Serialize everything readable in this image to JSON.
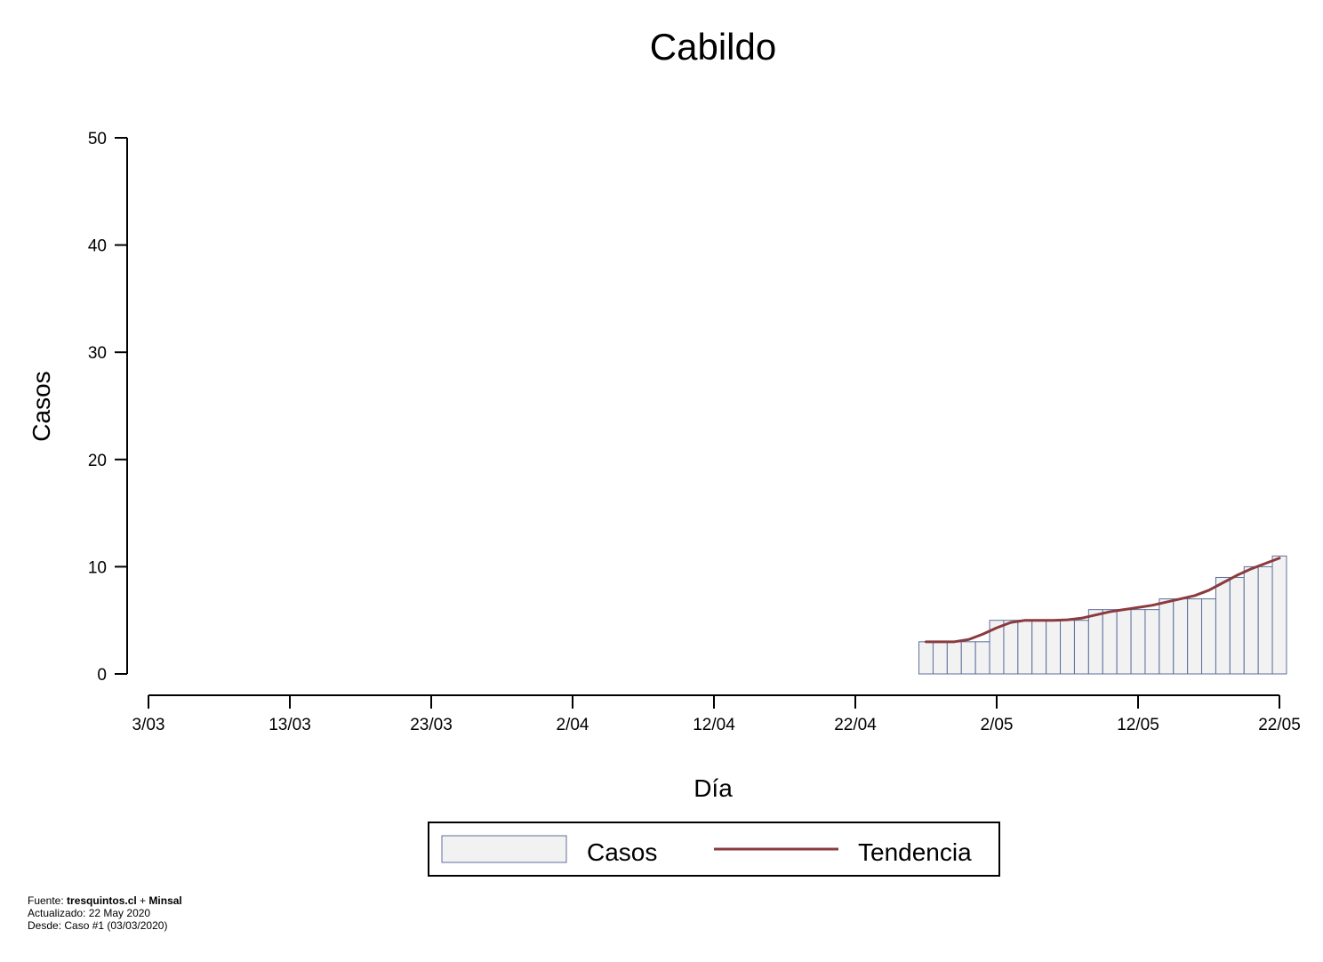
{
  "chart_data": {
    "type": "bar",
    "title": "Cabildo",
    "xlabel": "Día",
    "ylabel": "Casos",
    "ylim": [
      0,
      50
    ],
    "yticks": [
      "0",
      "10",
      "20",
      "30",
      "40",
      "50"
    ],
    "xlim": [
      "2020-03-03",
      "2020-05-22"
    ],
    "xticks": [
      "3/03",
      "13/03",
      "23/03",
      "2/04",
      "12/04",
      "22/04",
      "2/05",
      "12/05",
      "22/05"
    ],
    "x": [
      "2020-04-27",
      "2020-04-28",
      "2020-04-29",
      "2020-04-30",
      "2020-05-01",
      "2020-05-02",
      "2020-05-03",
      "2020-05-04",
      "2020-05-05",
      "2020-05-06",
      "2020-05-07",
      "2020-05-08",
      "2020-05-09",
      "2020-05-10",
      "2020-05-11",
      "2020-05-12",
      "2020-05-13",
      "2020-05-14",
      "2020-05-15",
      "2020-05-16",
      "2020-05-17",
      "2020-05-18",
      "2020-05-19",
      "2020-05-20",
      "2020-05-21",
      "2020-05-22"
    ],
    "series": [
      {
        "name": "Casos",
        "type": "bar",
        "color": "#f2f2f2",
        "edge_color": "#5c6f9c",
        "values": [
          3,
          3,
          3,
          3,
          3,
          5,
          5,
          5,
          5,
          5,
          5,
          5,
          6,
          6,
          6,
          6,
          6,
          7,
          7,
          7,
          7,
          9,
          9,
          10,
          10,
          11
        ]
      },
      {
        "name": "Tendencia",
        "type": "line",
        "color": "#8b3a3e",
        "values": [
          3,
          3,
          3,
          3.2,
          3.7,
          4.3,
          4.8,
          5,
          5,
          5,
          5.05,
          5.2,
          5.5,
          5.8,
          6,
          6.2,
          6.4,
          6.7,
          7,
          7.3,
          7.8,
          8.5,
          9.2,
          9.8,
          10.3,
          10.8
        ]
      }
    ],
    "legend": {
      "position": "bottom",
      "items": [
        "Casos",
        "Tendencia"
      ]
    }
  },
  "footer": {
    "source_prefix": "Fuente: ",
    "source_site": "tresquintos.cl",
    "source_join": " + ",
    "source_org": "Minsal",
    "updated": "Actualizado: 22 May 2020",
    "since": "Desde: Caso #1  (03/03/2020)"
  }
}
